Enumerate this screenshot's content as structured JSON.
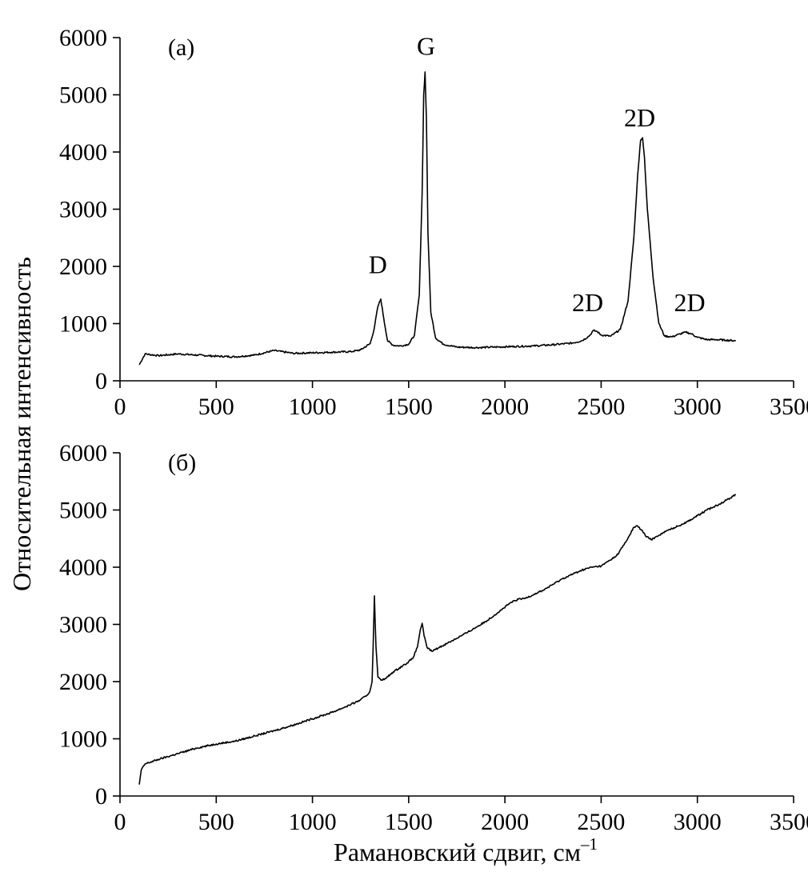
{
  "chart_data": [
    {
      "type": "line",
      "panel_label": "(a)",
      "xlim": [
        0,
        3500
      ],
      "ylim": [
        0,
        6000
      ],
      "xticks": [
        0,
        500,
        1000,
        1500,
        2000,
        2500,
        3000,
        3500
      ],
      "yticks": [
        0,
        1000,
        2000,
        3000,
        4000,
        5000,
        6000
      ],
      "grid": false,
      "annotations": [
        {
          "text": "D",
          "x": 1340,
          "y": 1880
        },
        {
          "text": "G",
          "x": 1590,
          "y": 5700
        },
        {
          "text": "2D",
          "x": 2430,
          "y": 1220
        },
        {
          "text": "2D",
          "x": 2700,
          "y": 4450
        },
        {
          "text": "2D",
          "x": 2960,
          "y": 1220
        }
      ],
      "series": [
        {
          "x": [
            100,
            130,
            200,
            300,
            400,
            500,
            600,
            700,
            800,
            900,
            1000,
            1100,
            1200,
            1250,
            1300,
            1320,
            1340,
            1355,
            1370,
            1390,
            1420,
            1460,
            1500,
            1530,
            1555,
            1570,
            1578,
            1585,
            1592,
            1600,
            1615,
            1640,
            1680,
            1750,
            1850,
            1950,
            2050,
            2150,
            2250,
            2350,
            2400,
            2440,
            2460,
            2480,
            2500,
            2550,
            2600,
            2640,
            2670,
            2690,
            2705,
            2715,
            2725,
            2740,
            2770,
            2800,
            2830,
            2870,
            2910,
            2940,
            2970,
            3000,
            3050,
            3100,
            3150,
            3200
          ],
          "y": [
            280,
            470,
            440,
            470,
            450,
            430,
            420,
            450,
            530,
            480,
            490,
            500,
            510,
            540,
            650,
            900,
            1300,
            1430,
            1100,
            700,
            620,
            610,
            640,
            800,
            1500,
            3300,
            5000,
            5400,
            4600,
            2600,
            1200,
            750,
            640,
            590,
            580,
            590,
            600,
            610,
            630,
            660,
            700,
            790,
            880,
            860,
            800,
            780,
            900,
            1400,
            2500,
            3600,
            4200,
            4250,
            3900,
            3000,
            1800,
            1000,
            780,
            770,
            820,
            850,
            820,
            760,
            720,
            720,
            710,
            700
          ]
        }
      ]
    },
    {
      "type": "line",
      "panel_label": "(б)",
      "xlim": [
        0,
        3500
      ],
      "ylim": [
        0,
        6000
      ],
      "xticks": [
        0,
        500,
        1000,
        1500,
        2000,
        2500,
        3000,
        3500
      ],
      "yticks": [
        0,
        1000,
        2000,
        3000,
        4000,
        5000,
        6000
      ],
      "grid": false,
      "series": [
        {
          "x": [
            100,
            110,
            130,
            200,
            300,
            400,
            500,
            600,
            700,
            800,
            900,
            1000,
            1100,
            1200,
            1250,
            1290,
            1300,
            1310,
            1315,
            1322,
            1330,
            1340,
            1360,
            1380,
            1420,
            1480,
            1520,
            1545,
            1560,
            1570,
            1580,
            1595,
            1620,
            1700,
            1800,
            1900,
            1980,
            2030,
            2070,
            2100,
            2200,
            2300,
            2400,
            2450,
            2500,
            2580,
            2630,
            2670,
            2690,
            2710,
            2730,
            2760,
            2800,
            2850,
            2900,
            2950,
            3000,
            3050,
            3100,
            3150,
            3200
          ],
          "y": [
            200,
            450,
            560,
            640,
            740,
            840,
            910,
            960,
            1050,
            1140,
            1240,
            1350,
            1460,
            1600,
            1680,
            1780,
            1850,
            2000,
            2600,
            3500,
            2600,
            2080,
            2030,
            2050,
            2170,
            2300,
            2400,
            2600,
            2900,
            3020,
            2800,
            2600,
            2530,
            2670,
            2850,
            3050,
            3250,
            3380,
            3440,
            3450,
            3600,
            3800,
            3950,
            4000,
            4020,
            4200,
            4450,
            4700,
            4720,
            4650,
            4550,
            4480,
            4560,
            4650,
            4720,
            4800,
            4900,
            5000,
            5080,
            5170,
            5270
          ]
        }
      ]
    }
  ],
  "axes": {
    "ylabel": "Относительная интенсивность",
    "xlabel": "Рамановский сдвиг, см",
    "xlabel_superscript": "–1"
  }
}
